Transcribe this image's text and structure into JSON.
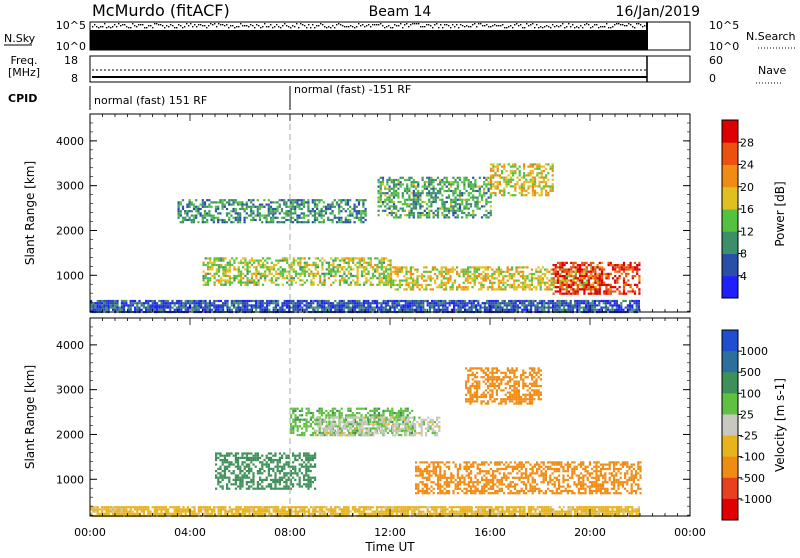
{
  "header": {
    "station": "McMurdo (fitACF)",
    "beam": "Beam 14",
    "date": "16/Jan/2019"
  },
  "noise_panel": {
    "left_label": "N.Sky",
    "right_label": "N.Search",
    "left_ticks": [
      "10^5",
      "10^0"
    ],
    "right_ticks": [
      "10^5",
      "10^0"
    ]
  },
  "freq_panel": {
    "left_label_line1": "Freq.",
    "left_label_line2": "[MHz]",
    "right_label": "Nave",
    "left_ticks": [
      "18",
      "8"
    ],
    "right_ticks": [
      "60",
      "0"
    ]
  },
  "cpid_panel": {
    "label": "CPID",
    "segments": [
      "normal (fast) 151 RF",
      "normal (fast) -151 RF"
    ]
  },
  "time_axis": {
    "label": "Time UT",
    "ticks": [
      "00:00",
      "04:00",
      "08:00",
      "12:00",
      "16:00",
      "20:00",
      "00:00"
    ]
  },
  "range_axis": {
    "label": "Slant Range [km]",
    "ticks": [
      "1000",
      "2000",
      "3000",
      "4000"
    ]
  },
  "power_colorbar": {
    "label": "Power [dB]",
    "ticks": [
      "4",
      "8",
      "12",
      "16",
      "20",
      "24",
      "28"
    ],
    "colors": [
      "#1f1fff",
      "#2a4fa8",
      "#3d8f6a",
      "#52c240",
      "#e0c020",
      "#f08c14",
      "#ee5010",
      "#dd0000"
    ]
  },
  "velocity_colorbar": {
    "label": "Velocity [m s-1]",
    "ticks": [
      "1000",
      "500",
      "100",
      "25",
      "-25",
      "-100",
      "-500",
      "-1000"
    ],
    "colors": [
      "#1f4fcf",
      "#2c6f9c",
      "#3e8f58",
      "#60c040",
      "#c8c8c0",
      "#e8b41c",
      "#f08c14",
      "#e84020",
      "#e00000"
    ]
  },
  "chart_data": [
    {
      "type": "heatmap",
      "title": "Power",
      "xlabel": "Time UT",
      "ylabel": "Slant Range [km]",
      "xlim": [
        0,
        24
      ],
      "ylim": [
        180,
        4600
      ],
      "colorbar": "Power [dB]",
      "features": [
        {
          "t": [
            0.0,
            22.0
          ],
          "r": [
            180,
            450
          ],
          "value": 6
        },
        {
          "t": [
            3.5,
            11.0
          ],
          "r": [
            2200,
            2700
          ],
          "value": 10
        },
        {
          "t": [
            11.5,
            16.0
          ],
          "r": [
            2300,
            3200
          ],
          "value": 12
        },
        {
          "t": [
            16.0,
            18.5
          ],
          "r": [
            2800,
            3500
          ],
          "value": 18
        },
        {
          "t": [
            4.5,
            12.0
          ],
          "r": [
            800,
            1400
          ],
          "value": 16
        },
        {
          "t": [
            12.0,
            20.5
          ],
          "r": [
            700,
            1200
          ],
          "value": 18
        },
        {
          "t": [
            18.5,
            22.0
          ],
          "r": [
            600,
            1300
          ],
          "value": 28
        }
      ]
    },
    {
      "type": "heatmap",
      "title": "Velocity",
      "xlabel": "Time UT",
      "ylabel": "Slant Range [km]",
      "xlim": [
        0,
        24
      ],
      "ylim": [
        180,
        4600
      ],
      "colorbar": "Velocity [m s-1]",
      "features": [
        {
          "t": [
            0.0,
            22.0
          ],
          "r": [
            180,
            400
          ],
          "value": -50
        },
        {
          "t": [
            5.0,
            9.0
          ],
          "r": [
            800,
            1600
          ],
          "value": 200
        },
        {
          "t": [
            8.0,
            13.0
          ],
          "r": [
            2000,
            2600
          ],
          "value": 80
        },
        {
          "t": [
            9.0,
            14.0
          ],
          "r": [
            2000,
            2400
          ],
          "value": 0
        },
        {
          "t": [
            13.0,
            22.0
          ],
          "r": [
            700,
            1400
          ],
          "value": -300
        },
        {
          "t": [
            15.0,
            18.0
          ],
          "r": [
            2700,
            3500
          ],
          "value": -300
        }
      ]
    }
  ]
}
